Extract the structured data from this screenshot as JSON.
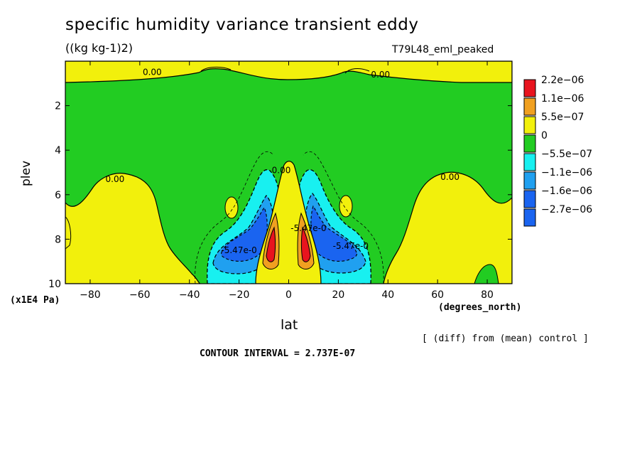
{
  "chart_data": {
    "type": "contour",
    "title": "specific humidity variance transient eddy",
    "units": "((kg kg-1)2)",
    "run_label": "T79L48_eml_peaked",
    "xlabel": "lat",
    "x_units": "(degrees_north)",
    "ylabel": "plev",
    "y_units": "(x1E4 Pa)",
    "diff_note": "[ (diff) from (mean) control ]",
    "contour_interval": "CONTOUR INTERVAL = 2.737E-07",
    "xlim": [
      -90,
      90
    ],
    "ylim": [
      10,
      0
    ],
    "x_ticks": [
      -80,
      -60,
      -40,
      -20,
      0,
      20,
      40,
      60,
      80
    ],
    "x_tick_labels": [
      "−80",
      "−60",
      "−40",
      "−20",
      "0",
      "20",
      "40",
      "60",
      "80"
    ],
    "y_ticks": [
      2,
      4,
      6,
      8,
      10
    ],
    "y_tick_labels": [
      "2",
      "4",
      "6",
      "8",
      "10"
    ],
    "legend": [
      {
        "label": "2.2e−06",
        "color": "#e8141e"
      },
      {
        "label": "1.1e−06",
        "color": "#f0a020"
      },
      {
        "label": "5.5e−07",
        "color": "#f2f00c"
      },
      {
        "label": "0",
        "color": "#22cc22"
      },
      {
        "label": "−5.5e−07",
        "color": "#18f0f0"
      },
      {
        "label": "−1.1e−06",
        "color": "#20a0f0"
      },
      {
        "label": "−1.6e−06",
        "color": "#1a64f0"
      },
      {
        "label": "−2.7e−06",
        "color": "#1a64f0"
      }
    ],
    "contour_labels": [
      {
        "text": "0.00",
        "lat": -55,
        "plev": 0.5
      },
      {
        "text": "0.00",
        "lat": 37,
        "plev": 0.6
      },
      {
        "text": "0.00",
        "lat": -70,
        "plev": 5.3
      },
      {
        "text": "0.00",
        "lat": -3,
        "plev": 4.9
      },
      {
        "text": "0.00",
        "lat": 65,
        "plev": 5.2
      },
      {
        "text": "-5.47e-0",
        "lat": -20,
        "plev": 8.5
      },
      {
        "text": "-5.47e-0",
        "lat": 8,
        "plev": 7.5
      },
      {
        "text": "-5.47e-0",
        "lat": 25,
        "plev": 8.3
      }
    ]
  }
}
